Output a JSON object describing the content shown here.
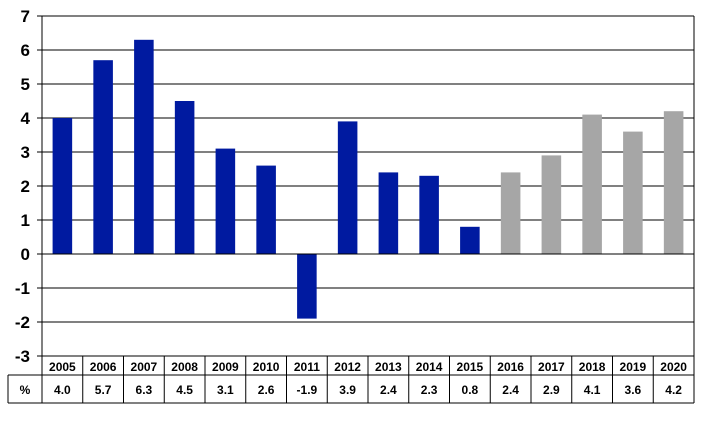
{
  "chart_data": {
    "type": "bar",
    "title": "",
    "xlabel": "",
    "ylabel": "",
    "ylim": [
      -3,
      7
    ],
    "yticks": [
      7,
      6,
      5,
      4,
      3,
      2,
      1,
      0,
      -1,
      -2,
      -3
    ],
    "grid": true,
    "legend": "none",
    "categories": [
      "2005",
      "2006",
      "2007",
      "2008",
      "2009",
      "2010",
      "2011",
      "2012",
      "2013",
      "2014",
      "2015",
      "2016",
      "2017",
      "2018",
      "2019",
      "2020"
    ],
    "values": [
      4.0,
      5.7,
      6.3,
      4.5,
      3.1,
      2.6,
      -1.9,
      3.9,
      2.4,
      2.3,
      0.8,
      2.4,
      2.9,
      4.1,
      3.6,
      4.2
    ],
    "value_labels": [
      "4.0",
      "5.7",
      "6.3",
      "4.5",
      "3.1",
      "2.6",
      "-1.9",
      "3.9",
      "2.4",
      "2.3",
      "0.8",
      "2.4",
      "2.9",
      "4.1",
      "3.6",
      "4.2"
    ],
    "row_label": "%",
    "actual_last_index": 10,
    "colors": {
      "actual": "#001aa0",
      "forecast": "#a6a6a6"
    }
  }
}
